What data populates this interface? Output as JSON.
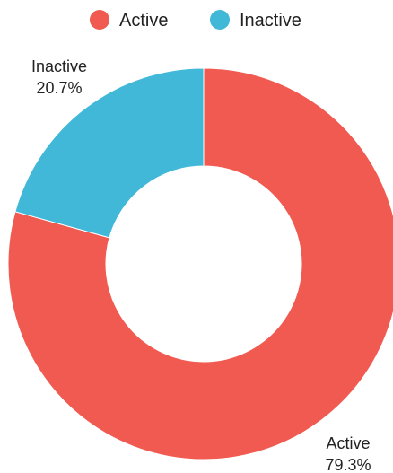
{
  "chart_data": {
    "type": "pie",
    "variant": "donut",
    "title": "",
    "legend_position": "top-center",
    "slices": [
      {
        "label": "Active",
        "value": 79.3,
        "value_label": "79.3%",
        "color": "#F05A50"
      },
      {
        "label": "Inactive",
        "value": 20.7,
        "value_label": "20.7%",
        "color": "#42B8D8"
      }
    ]
  }
}
